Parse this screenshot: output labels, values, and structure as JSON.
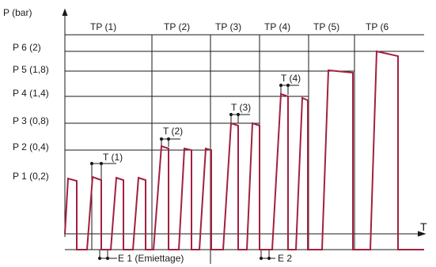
{
  "y_axis_label": "P (bar)",
  "x_axis_label": "T",
  "phase_labels": [
    "TP (1)",
    "TP (2)",
    "TP (3)",
    "TP (4)",
    "TP (5)",
    "TP (6"
  ],
  "pressure_levels": [
    "P 6 (2)",
    "P 5 (1,8)",
    "P 4 (1,4)",
    "P 3 (0,8)",
    "P 2 (0,4)",
    "P 1 (0,2)"
  ],
  "time_markers": [
    "T (1)",
    "T (2)",
    "T (3)",
    "T (4)"
  ],
  "emptying_markers": [
    "E 1 (Emiettage)",
    "E 2"
  ],
  "colors": {
    "pulse": "#a3203f",
    "line": "#1a1a1a"
  }
}
